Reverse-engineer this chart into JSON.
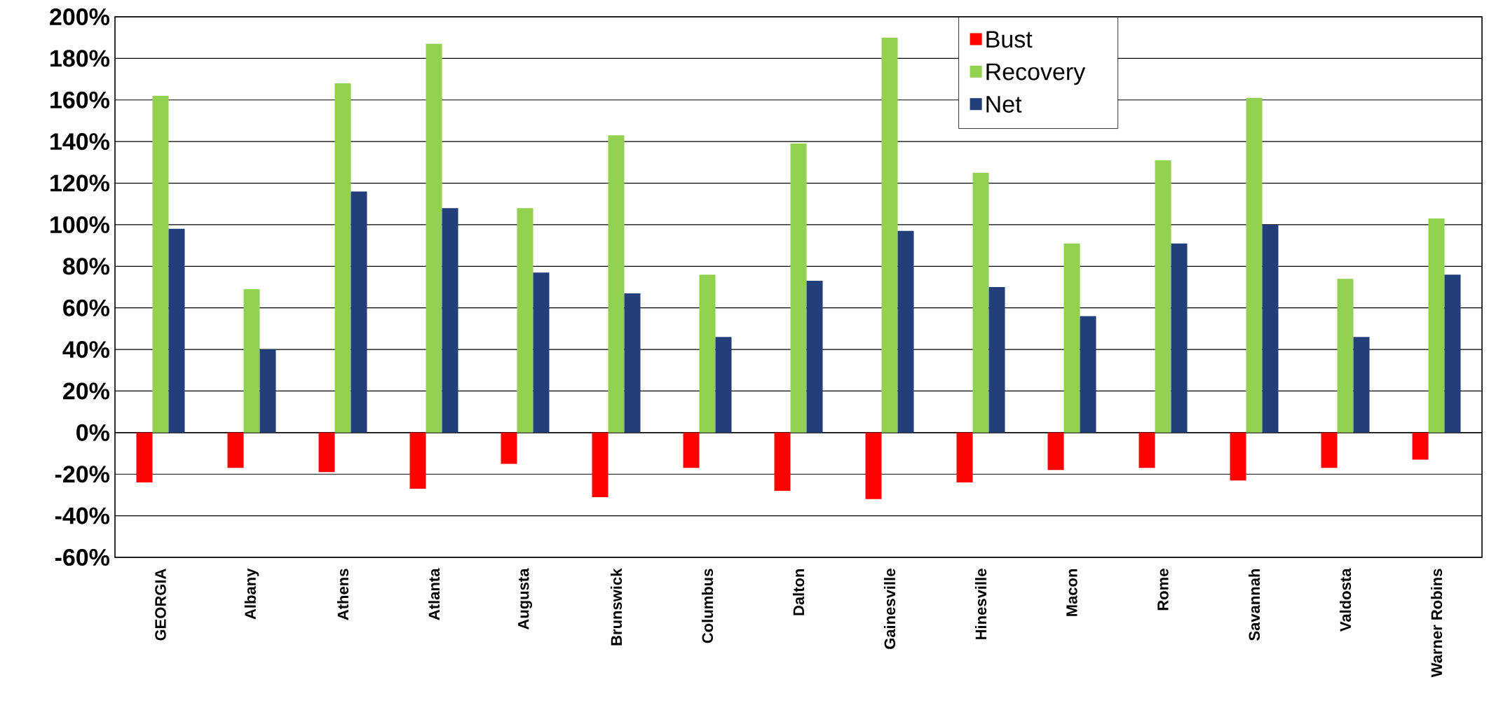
{
  "chart_data": {
    "type": "bar",
    "categories": [
      "GEORGIA",
      "Albany",
      "Athens",
      "Atlanta",
      "Augusta",
      "Brunswick",
      "Columbus",
      "Dalton",
      "Gainesville",
      "Hinesville",
      "Macon",
      "Rome",
      "Savannah",
      "Valdosta",
      "Warner Robins"
    ],
    "series": [
      {
        "name": "Bust",
        "color": "#ff0000",
        "values": [
          -24,
          -17,
          -19,
          -27,
          -15,
          -31,
          -17,
          -28,
          -32,
          -24,
          -18,
          -17,
          -23,
          -17,
          -13
        ]
      },
      {
        "name": "Recovery",
        "color": "#92d050",
        "values": [
          162,
          69,
          168,
          187,
          108,
          143,
          76,
          139,
          190,
          125,
          91,
          131,
          161,
          74,
          103
        ]
      },
      {
        "name": "Net",
        "color": "#233f7b",
        "values": [
          98,
          40,
          116,
          108,
          77,
          67,
          46,
          73,
          97,
          70,
          56,
          91,
          100,
          46,
          76
        ]
      }
    ],
    "ylim": [
      -60,
      200
    ],
    "yticks": [
      {
        "value": -60,
        "label": "-60%"
      },
      {
        "value": -40,
        "label": "-40%"
      },
      {
        "value": -20,
        "label": "-20%"
      },
      {
        "value": 0,
        "label": "0%"
      },
      {
        "value": 20,
        "label": "20%"
      },
      {
        "value": 40,
        "label": "40%"
      },
      {
        "value": 60,
        "label": "60%"
      },
      {
        "value": 80,
        "label": "80%"
      },
      {
        "value": 100,
        "label": "100%"
      },
      {
        "value": 120,
        "label": "120%"
      },
      {
        "value": 140,
        "label": "140%"
      },
      {
        "value": 160,
        "label": "160%"
      },
      {
        "value": 180,
        "label": "180%"
      },
      {
        "value": 200,
        "label": "200%"
      }
    ],
    "grid": "y",
    "legend": "top right"
  }
}
